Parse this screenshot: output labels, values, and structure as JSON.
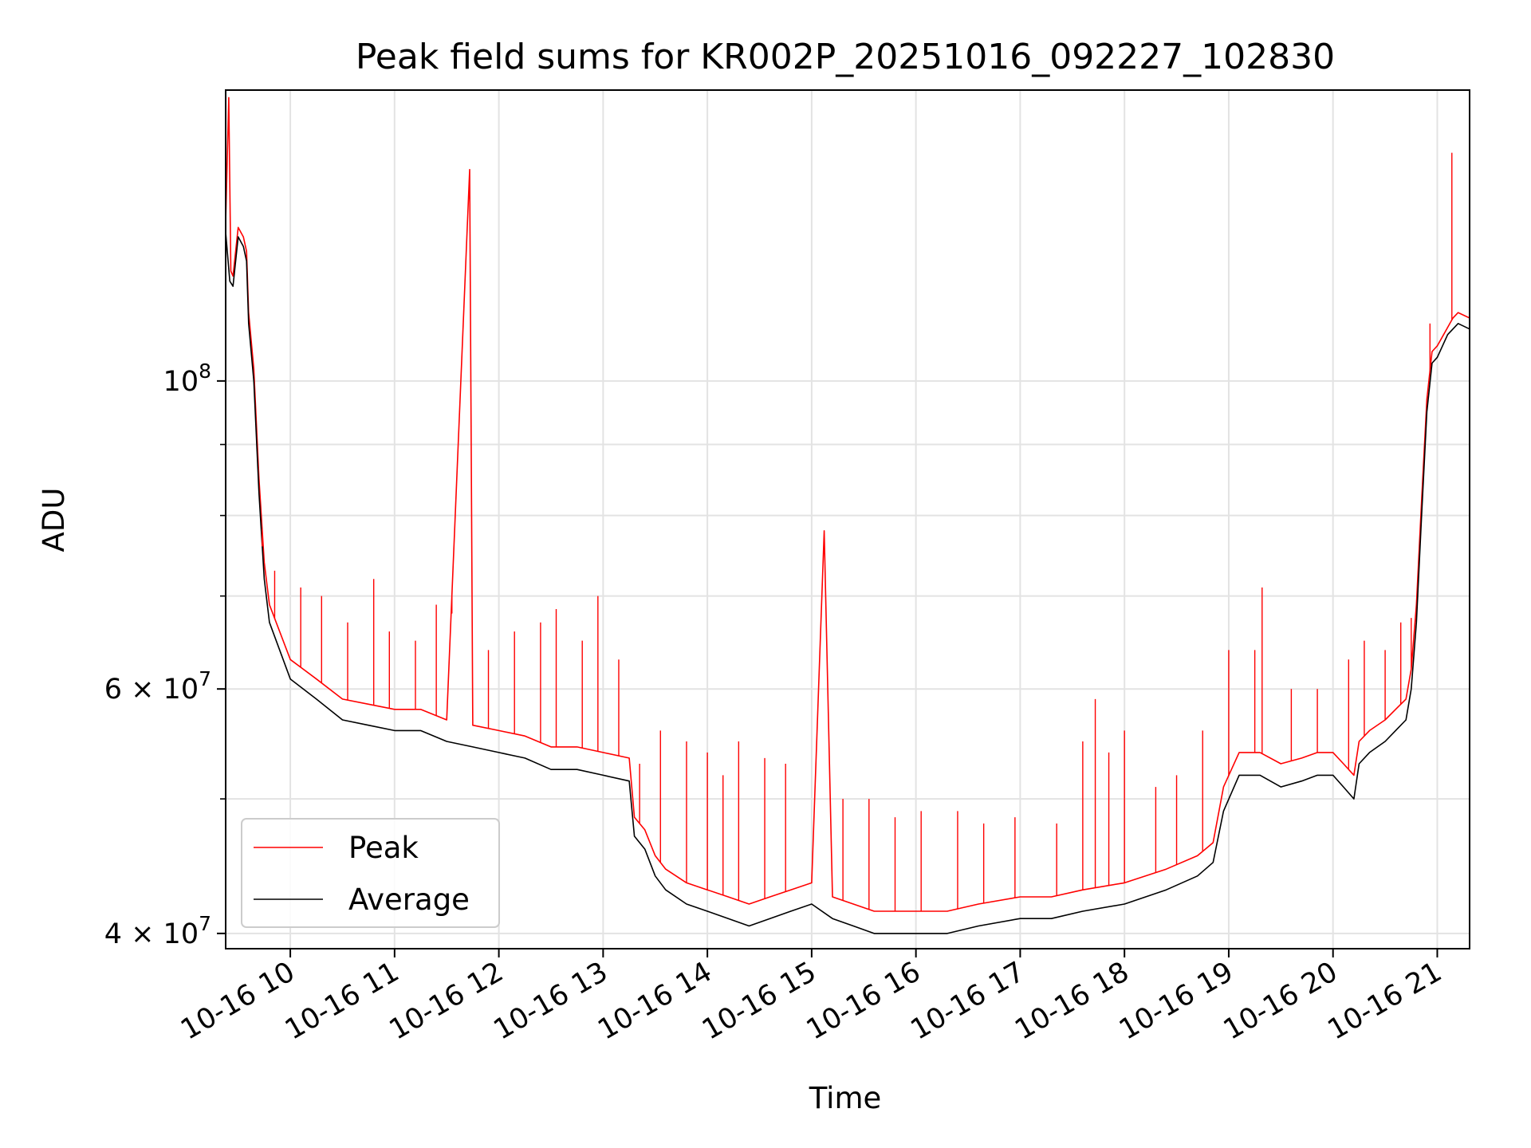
{
  "chart_data": {
    "type": "line",
    "title": "Peak field sums for KR002P_20251016_092227_102830",
    "xlabel": "Time",
    "ylabel": "ADU",
    "yscale": "log",
    "xlim_hours": [
      9.38,
      21.31
    ],
    "ylim": [
      39000000,
      162000000
    ],
    "grid": true,
    "legend_position": "lower-left",
    "x_tick_labels": [
      "10-16 10",
      "10-16 11",
      "10-16 12",
      "10-16 13",
      "10-16 14",
      "10-16 15",
      "10-16 16",
      "10-16 17",
      "10-16 18",
      "10-16 19",
      "10-16 20",
      "10-16 21"
    ],
    "x_tick_hours": [
      10,
      11,
      12,
      13,
      14,
      15,
      16,
      17,
      18,
      19,
      20,
      21
    ],
    "y_major_ticks": [
      {
        "value": 40000000,
        "mantissa": "4",
        "exponent": "7"
      },
      {
        "value": 60000000,
        "mantissa": "6",
        "exponent": "7"
      },
      {
        "value": 100000000,
        "mantissa": "",
        "exponent": "8"
      }
    ],
    "y_minor_ticks": [
      50000000,
      70000000,
      80000000,
      90000000
    ],
    "series": [
      {
        "name": "Average",
        "color": "#000000",
        "x_hours": [
          9.38,
          9.42,
          9.45,
          9.5,
          9.55,
          9.58,
          9.6,
          9.65,
          9.7,
          9.75,
          9.8,
          10.0,
          10.25,
          10.5,
          10.75,
          11.0,
          11.25,
          11.5,
          11.75,
          12.0,
          12.25,
          12.5,
          12.75,
          13.0,
          13.25,
          13.3,
          13.4,
          13.5,
          13.6,
          13.8,
          14.0,
          14.2,
          14.4,
          14.6,
          14.8,
          15.0,
          15.2,
          15.4,
          15.6,
          15.8,
          16.0,
          16.3,
          16.6,
          17.0,
          17.3,
          17.6,
          18.0,
          18.4,
          18.7,
          18.85,
          18.95,
          19.1,
          19.3,
          19.5,
          19.7,
          19.85,
          20.0,
          20.1,
          20.2,
          20.25,
          20.35,
          20.5,
          20.6,
          20.7,
          20.75,
          20.8,
          20.85,
          20.9,
          20.95,
          21.0,
          21.1,
          21.2,
          21.31
        ],
        "y": [
          128000000,
          118000000,
          117000000,
          127000000,
          125000000,
          122000000,
          110000000,
          100000000,
          83000000,
          72000000,
          67000000,
          61000000,
          59000000,
          57000000,
          56500000,
          56000000,
          56000000,
          55000000,
          54500000,
          54000000,
          53500000,
          52500000,
          52500000,
          52000000,
          51500000,
          47000000,
          46000000,
          44000000,
          43000000,
          42000000,
          41500000,
          41000000,
          40500000,
          41000000,
          41500000,
          42000000,
          41000000,
          40500000,
          40000000,
          40000000,
          40000000,
          40000000,
          40500000,
          41000000,
          41000000,
          41500000,
          42000000,
          43000000,
          44000000,
          45000000,
          49000000,
          52000000,
          52000000,
          51000000,
          51500000,
          52000000,
          52000000,
          51000000,
          50000000,
          53000000,
          54000000,
          55000000,
          56000000,
          57000000,
          60000000,
          67000000,
          80000000,
          95000000,
          103000000,
          104000000,
          108000000,
          110000000,
          109000000
        ]
      },
      {
        "name": "Peak",
        "color": "#ff0000",
        "x_hours": [
          9.38,
          9.41,
          9.43,
          9.45,
          9.5,
          9.55,
          9.58,
          9.6,
          9.65,
          9.7,
          9.75,
          9.8,
          10.0,
          10.25,
          10.5,
          10.75,
          11.0,
          11.25,
          11.5,
          11.72,
          11.75,
          12.0,
          12.25,
          12.5,
          12.75,
          13.0,
          13.25,
          13.3,
          13.4,
          13.5,
          13.6,
          13.8,
          14.0,
          14.2,
          14.4,
          14.6,
          14.8,
          15.0,
          15.12,
          15.2,
          15.4,
          15.6,
          15.8,
          16.0,
          16.3,
          16.6,
          17.0,
          17.3,
          17.6,
          18.0,
          18.4,
          18.7,
          18.85,
          18.95,
          19.1,
          19.3,
          19.5,
          19.7,
          19.85,
          20.0,
          20.1,
          20.2,
          20.25,
          20.35,
          20.5,
          20.6,
          20.7,
          20.75,
          20.8,
          20.85,
          20.9,
          20.95,
          21.0,
          21.15,
          21.2,
          21.31
        ],
        "y": [
          130000000,
          160000000,
          120000000,
          119000000,
          129000000,
          127000000,
          124000000,
          112000000,
          102000000,
          85000000,
          74000000,
          69000000,
          63000000,
          61000000,
          59000000,
          58500000,
          58000000,
          58000000,
          57000000,
          142000000,
          56500000,
          56000000,
          55500000,
          54500000,
          54500000,
          54000000,
          53500000,
          48500000,
          47500000,
          45500000,
          44500000,
          43500000,
          43000000,
          42500000,
          42000000,
          42500000,
          43000000,
          43500000,
          78000000,
          42500000,
          42000000,
          41500000,
          41500000,
          41500000,
          41500000,
          42000000,
          42500000,
          42500000,
          43000000,
          43500000,
          44500000,
          45500000,
          46500000,
          51000000,
          54000000,
          54000000,
          53000000,
          53500000,
          54000000,
          54000000,
          53000000,
          52000000,
          55000000,
          56000000,
          57000000,
          58000000,
          59000000,
          62000000,
          69000000,
          82000000,
          97000000,
          105000000,
          106000000,
          111000000,
          112000000,
          111000000
        ]
      }
    ],
    "spikes_hours": [
      {
        "x": 9.73,
        "y": 76000000
      },
      {
        "x": 9.85,
        "y": 73000000
      },
      {
        "x": 10.1,
        "y": 71000000
      },
      {
        "x": 10.3,
        "y": 70000000
      },
      {
        "x": 10.55,
        "y": 67000000
      },
      {
        "x": 10.8,
        "y": 72000000
      },
      {
        "x": 10.95,
        "y": 66000000
      },
      {
        "x": 11.2,
        "y": 65000000
      },
      {
        "x": 11.4,
        "y": 69000000
      },
      {
        "x": 11.55,
        "y": 68000000
      },
      {
        "x": 11.9,
        "y": 64000000
      },
      {
        "x": 12.15,
        "y": 66000000
      },
      {
        "x": 12.4,
        "y": 67000000
      },
      {
        "x": 12.55,
        "y": 68500000
      },
      {
        "x": 12.8,
        "y": 65000000
      },
      {
        "x": 12.95,
        "y": 70000000
      },
      {
        "x": 13.15,
        "y": 63000000
      },
      {
        "x": 13.35,
        "y": 53000000
      },
      {
        "x": 13.55,
        "y": 56000000
      },
      {
        "x": 13.8,
        "y": 55000000
      },
      {
        "x": 14.0,
        "y": 54000000
      },
      {
        "x": 14.15,
        "y": 52000000
      },
      {
        "x": 14.3,
        "y": 55000000
      },
      {
        "x": 14.55,
        "y": 53500000
      },
      {
        "x": 14.75,
        "y": 53000000
      },
      {
        "x": 15.3,
        "y": 50000000
      },
      {
        "x": 15.55,
        "y": 50000000
      },
      {
        "x": 15.8,
        "y": 48500000
      },
      {
        "x": 16.05,
        "y": 49000000
      },
      {
        "x": 16.4,
        "y": 49000000
      },
      {
        "x": 16.65,
        "y": 48000000
      },
      {
        "x": 16.95,
        "y": 48500000
      },
      {
        "x": 17.35,
        "y": 48000000
      },
      {
        "x": 17.6,
        "y": 55000000
      },
      {
        "x": 17.72,
        "y": 59000000
      },
      {
        "x": 17.85,
        "y": 54000000
      },
      {
        "x": 18.0,
        "y": 56000000
      },
      {
        "x": 18.3,
        "y": 51000000
      },
      {
        "x": 18.5,
        "y": 52000000
      },
      {
        "x": 18.75,
        "y": 56000000
      },
      {
        "x": 19.0,
        "y": 64000000
      },
      {
        "x": 19.25,
        "y": 64000000
      },
      {
        "x": 19.32,
        "y": 71000000
      },
      {
        "x": 19.6,
        "y": 60000000
      },
      {
        "x": 19.85,
        "y": 60000000
      },
      {
        "x": 20.15,
        "y": 63000000
      },
      {
        "x": 20.3,
        "y": 65000000
      },
      {
        "x": 20.5,
        "y": 64000000
      },
      {
        "x": 20.65,
        "y": 67000000
      },
      {
        "x": 20.75,
        "y": 67500000
      },
      {
        "x": 20.93,
        "y": 110000000
      },
      {
        "x": 21.14,
        "y": 146000000
      }
    ]
  }
}
